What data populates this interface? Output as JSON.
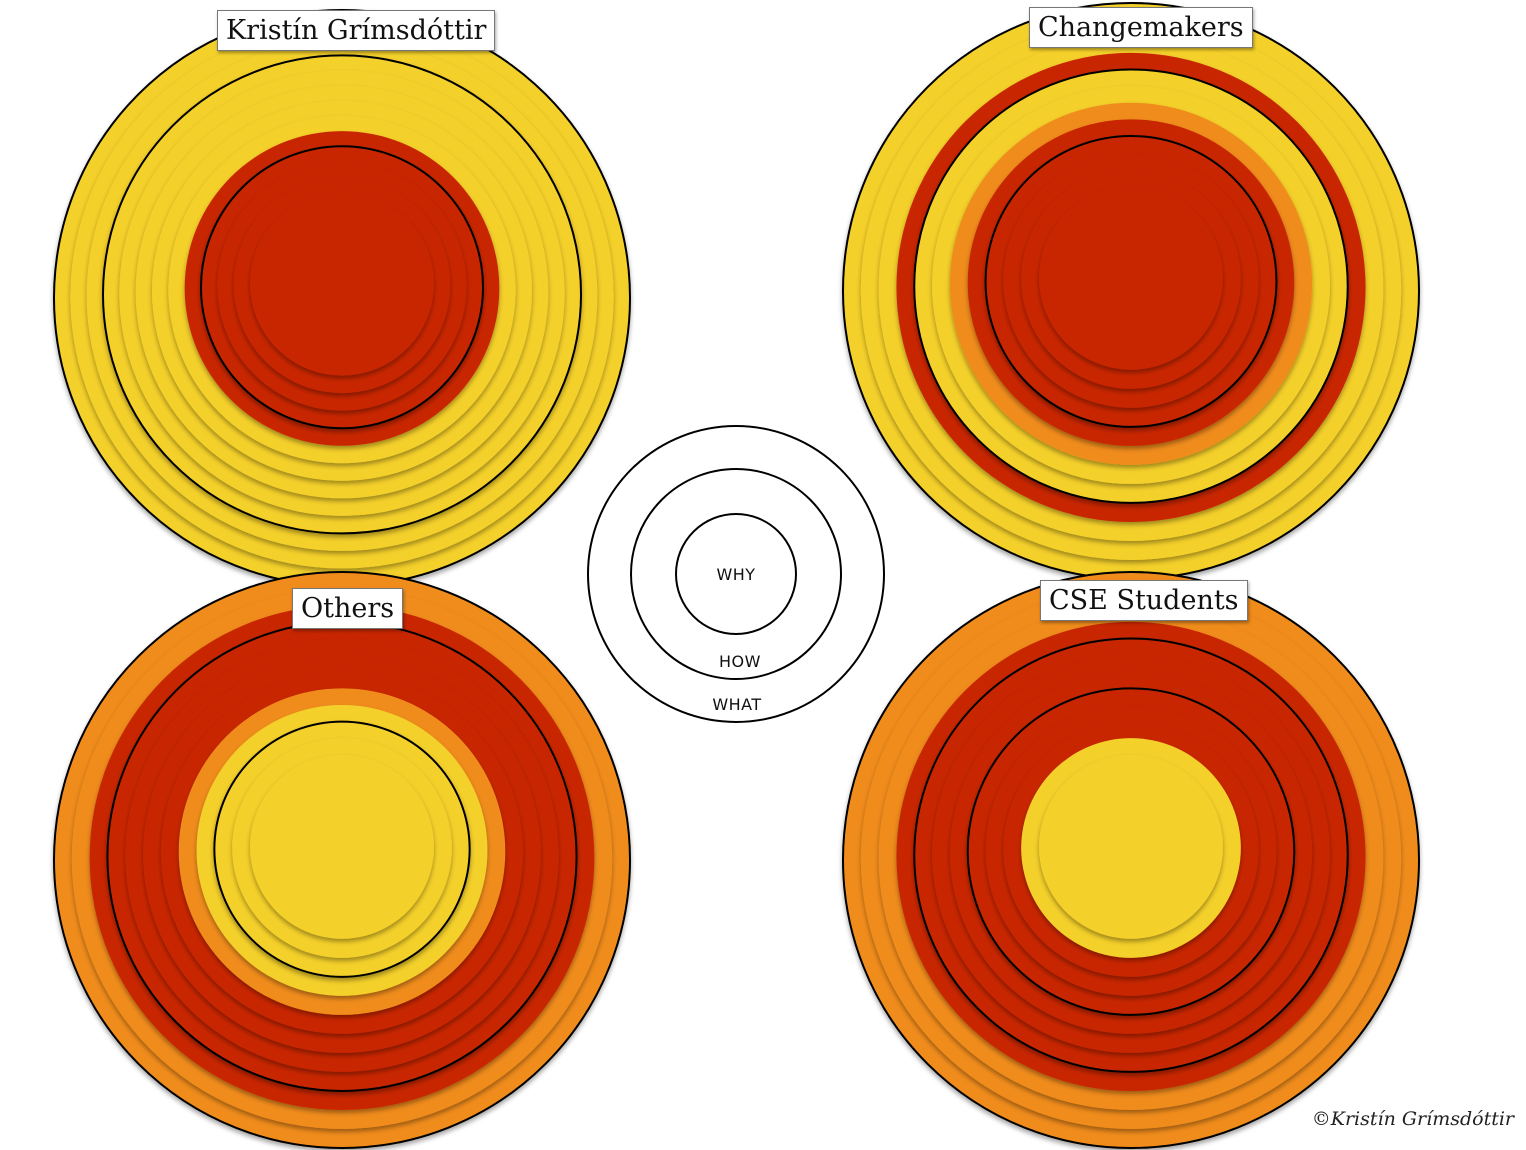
{
  "colors": {
    "yellow": "#F4D02B",
    "red": "#C82500",
    "orange": "#F08C1A",
    "outline": "#000000",
    "legend_fill": "#ffffff"
  },
  "diagrams": [
    {
      "title": "Kristín Grímsdóttir",
      "rings_outer_to_inner": [
        "yellow",
        "yellow",
        "yellow",
        "yellow",
        "yellow",
        "yellow",
        "yellow",
        "yellow",
        "red",
        "red",
        "red",
        "red",
        "red"
      ],
      "outlined_rings": [
        0,
        3,
        9
      ]
    },
    {
      "title": "Changemakers",
      "rings_outer_to_inner": [
        "yellow",
        "yellow",
        "yellow",
        "red",
        "yellow",
        "yellow",
        "orange",
        "red",
        "red",
        "red",
        "red",
        "red"
      ],
      "outlined_rings": [
        0,
        4,
        8
      ]
    },
    {
      "title": "Others",
      "rings_outer_to_inner": [
        "orange",
        "orange",
        "red",
        "red",
        "red",
        "red",
        "red",
        "orange",
        "yellow",
        "yellow",
        "yellow",
        "yellow"
      ],
      "outlined_rings": [
        0,
        3,
        9
      ]
    },
    {
      "title": "CSE Students",
      "rings_outer_to_inner": [
        "orange",
        "orange",
        "orange",
        "red",
        "red",
        "red",
        "red",
        "red",
        "red",
        "red",
        "yellow",
        "yellow"
      ],
      "outlined_rings": [
        0,
        4,
        7
      ]
    }
  ],
  "legend": {
    "inner": "WHY",
    "middle": "HOW",
    "outer": "WHAT"
  },
  "copyright": "©Kristín Grímsdóttir"
}
